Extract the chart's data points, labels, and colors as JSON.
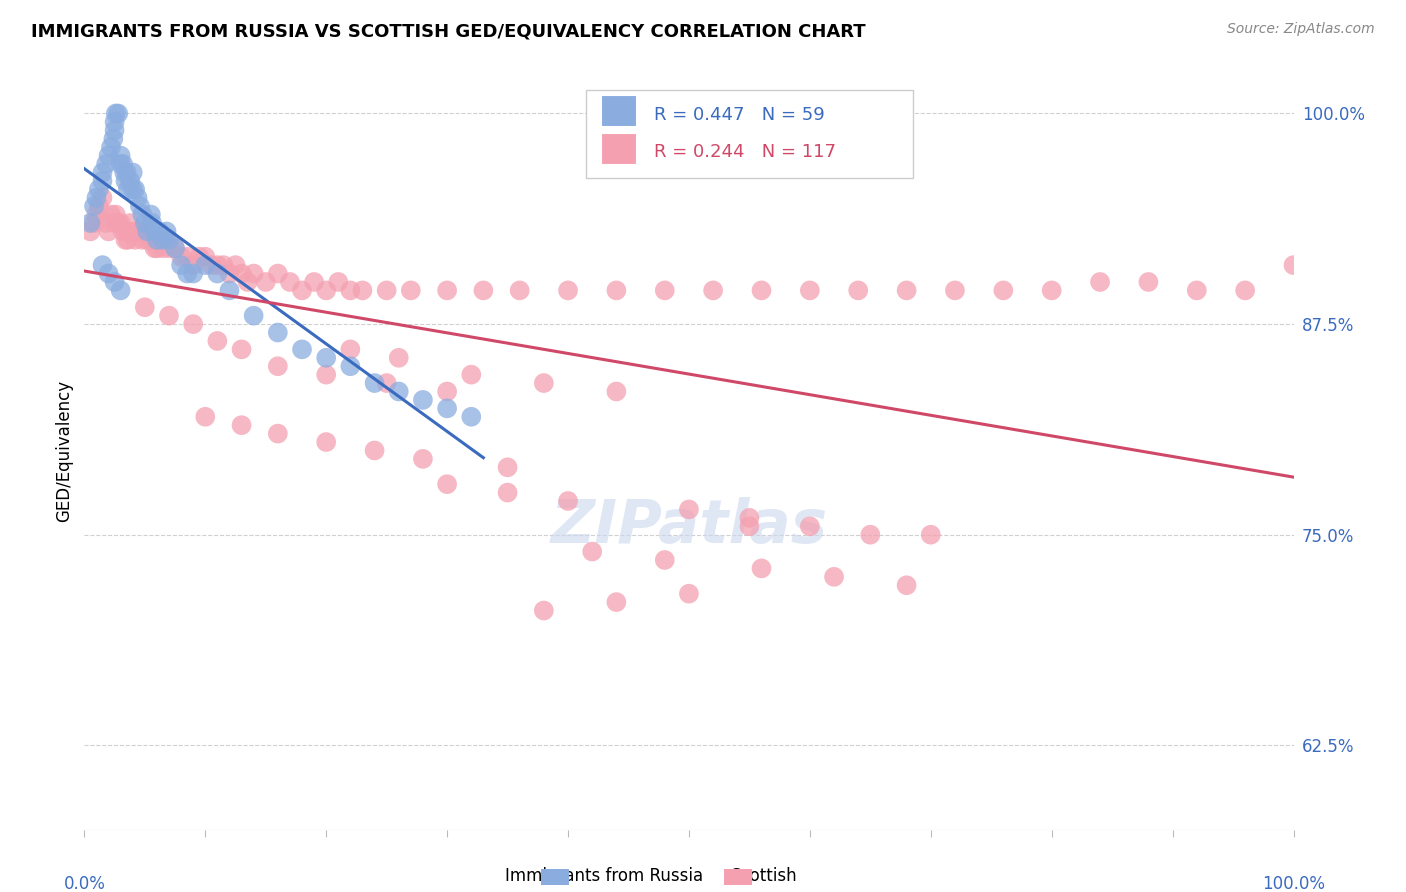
{
  "title": "IMMIGRANTS FROM RUSSIA VS SCOTTISH GED/EQUIVALENCY CORRELATION CHART",
  "source": "Source: ZipAtlas.com",
  "ylabel": "GED/Equivalency",
  "legend_label1": "Immigrants from Russia",
  "legend_label2": "Scottish",
  "r1": 0.447,
  "n1": 59,
  "r2": 0.244,
  "n2": 117,
  "color_blue": "#8aacdf",
  "color_pink": "#f4a0b0",
  "color_blue_line": "#3a6bbf",
  "color_pink_line": "#d04868",
  "color_text_blue": "#3a6bbf",
  "xlim": [
    0.0,
    1.0
  ],
  "ylim": [
    0.575,
    1.025
  ],
  "yticks": [
    0.625,
    0.75,
    0.875,
    1.0
  ],
  "ytick_labels": [
    "62.5%",
    "75.0%",
    "87.5%",
    "100.0%"
  ],
  "blue_x": [
    0.005,
    0.008,
    0.01,
    0.012,
    0.015,
    0.015,
    0.018,
    0.02,
    0.022,
    0.024,
    0.025,
    0.025,
    0.026,
    0.028,
    0.03,
    0.03,
    0.032,
    0.033,
    0.034,
    0.035,
    0.036,
    0.038,
    0.04,
    0.04,
    0.042,
    0.044,
    0.046,
    0.048,
    0.05,
    0.052,
    0.055,
    0.056,
    0.058,
    0.06,
    0.062,
    0.065,
    0.068,
    0.07,
    0.075,
    0.08,
    0.085,
    0.09,
    0.1,
    0.11,
    0.12,
    0.14,
    0.16,
    0.18,
    0.2,
    0.22,
    0.24,
    0.26,
    0.28,
    0.3,
    0.32,
    0.015,
    0.02,
    0.025,
    0.03
  ],
  "blue_y": [
    0.935,
    0.945,
    0.95,
    0.955,
    0.96,
    0.965,
    0.97,
    0.975,
    0.98,
    0.985,
    0.99,
    0.995,
    1.0,
    1.0,
    0.97,
    0.975,
    0.97,
    0.965,
    0.96,
    0.965,
    0.955,
    0.96,
    0.955,
    0.965,
    0.955,
    0.95,
    0.945,
    0.94,
    0.935,
    0.93,
    0.94,
    0.935,
    0.93,
    0.925,
    0.93,
    0.925,
    0.93,
    0.925,
    0.92,
    0.91,
    0.905,
    0.905,
    0.91,
    0.905,
    0.895,
    0.88,
    0.87,
    0.86,
    0.855,
    0.85,
    0.84,
    0.835,
    0.83,
    0.825,
    0.82,
    0.91,
    0.905,
    0.9,
    0.895
  ],
  "pink_x": [
    0.005,
    0.008,
    0.01,
    0.012,
    0.015,
    0.018,
    0.02,
    0.022,
    0.025,
    0.026,
    0.028,
    0.03,
    0.032,
    0.034,
    0.035,
    0.036,
    0.038,
    0.04,
    0.042,
    0.044,
    0.046,
    0.048,
    0.05,
    0.052,
    0.055,
    0.058,
    0.06,
    0.062,
    0.065,
    0.068,
    0.07,
    0.075,
    0.08,
    0.085,
    0.09,
    0.095,
    0.1,
    0.105,
    0.11,
    0.115,
    0.12,
    0.125,
    0.13,
    0.135,
    0.14,
    0.15,
    0.16,
    0.17,
    0.18,
    0.19,
    0.2,
    0.21,
    0.22,
    0.23,
    0.25,
    0.27,
    0.3,
    0.33,
    0.36,
    0.4,
    0.44,
    0.48,
    0.52,
    0.56,
    0.6,
    0.64,
    0.68,
    0.72,
    0.76,
    0.8,
    0.84,
    0.88,
    0.92,
    0.96,
    1.0,
    0.05,
    0.07,
    0.09,
    0.11,
    0.13,
    0.16,
    0.2,
    0.25,
    0.3,
    0.22,
    0.26,
    0.32,
    0.38,
    0.44,
    0.1,
    0.13,
    0.16,
    0.2,
    0.24,
    0.28,
    0.35,
    0.3,
    0.35,
    0.4,
    0.5,
    0.55,
    0.6,
    0.65,
    0.55,
    0.7,
    0.42,
    0.48,
    0.56,
    0.62,
    0.68,
    0.5,
    0.44,
    0.38
  ],
  "pink_y": [
    0.93,
    0.935,
    0.94,
    0.945,
    0.95,
    0.935,
    0.93,
    0.94,
    0.935,
    0.94,
    0.935,
    0.935,
    0.93,
    0.925,
    0.93,
    0.925,
    0.935,
    0.93,
    0.925,
    0.93,
    0.93,
    0.925,
    0.93,
    0.925,
    0.925,
    0.92,
    0.92,
    0.925,
    0.92,
    0.925,
    0.92,
    0.92,
    0.915,
    0.915,
    0.91,
    0.915,
    0.915,
    0.91,
    0.91,
    0.91,
    0.905,
    0.91,
    0.905,
    0.9,
    0.905,
    0.9,
    0.905,
    0.9,
    0.895,
    0.9,
    0.895,
    0.9,
    0.895,
    0.895,
    0.895,
    0.895,
    0.895,
    0.895,
    0.895,
    0.895,
    0.895,
    0.895,
    0.895,
    0.895,
    0.895,
    0.895,
    0.895,
    0.895,
    0.895,
    0.895,
    0.9,
    0.9,
    0.895,
    0.895,
    0.91,
    0.885,
    0.88,
    0.875,
    0.865,
    0.86,
    0.85,
    0.845,
    0.84,
    0.835,
    0.86,
    0.855,
    0.845,
    0.84,
    0.835,
    0.82,
    0.815,
    0.81,
    0.805,
    0.8,
    0.795,
    0.79,
    0.78,
    0.775,
    0.77,
    0.765,
    0.76,
    0.755,
    0.75,
    0.755,
    0.75,
    0.74,
    0.735,
    0.73,
    0.725,
    0.72,
    0.715,
    0.71,
    0.705
  ]
}
